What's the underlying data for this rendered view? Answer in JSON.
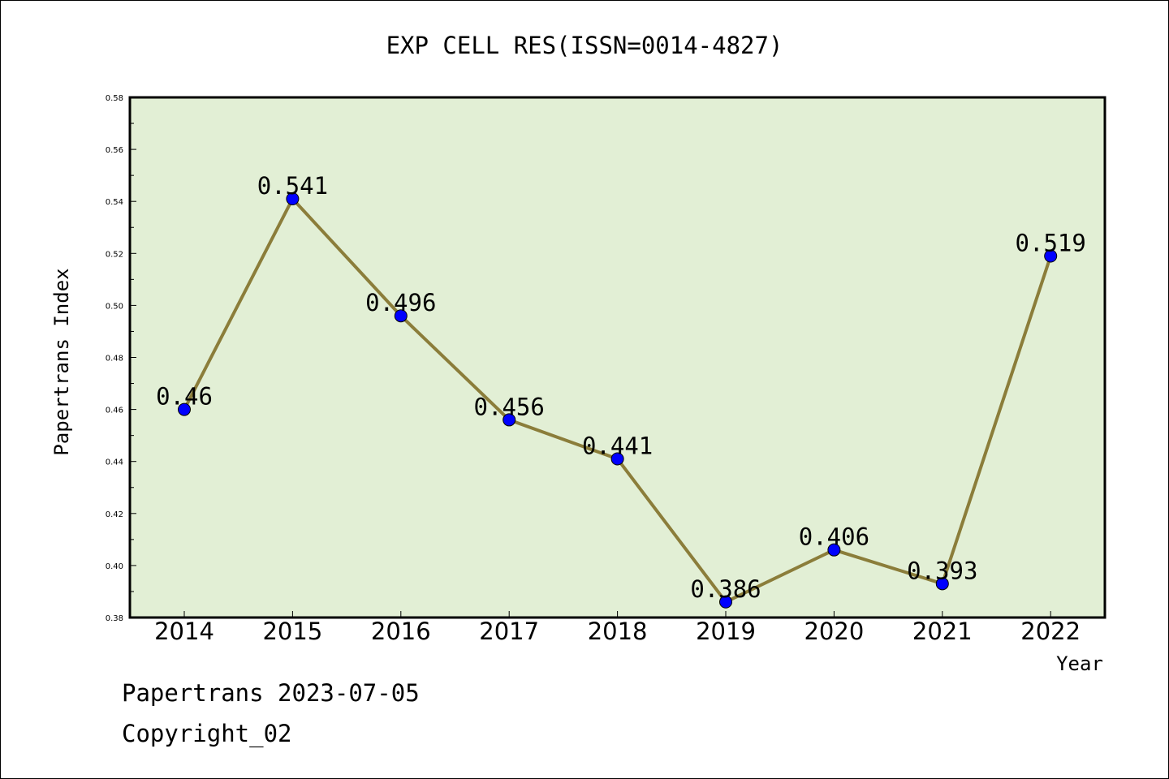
{
  "title": "EXP CELL RES(ISSN=0014-4827)",
  "footer": {
    "line1": "Papertrans 2023-07-05",
    "line2": "Copyright_02"
  },
  "chart_data": {
    "type": "line",
    "title": "EXP CELL RES(ISSN=0014-4827)",
    "xlabel": "Year",
    "ylabel": "Papertrans Index",
    "categories": [
      "2014",
      "2015",
      "2016",
      "2017",
      "2018",
      "2019",
      "2020",
      "2021",
      "2022"
    ],
    "values": [
      0.46,
      0.541,
      0.496,
      0.456,
      0.441,
      0.386,
      0.406,
      0.393,
      0.519
    ],
    "data_labels": [
      "0.46",
      "0.541",
      "0.496",
      "0.456",
      "0.441",
      "0.386",
      "0.406",
      "0.393",
      "0.519"
    ],
    "ylim": [
      0.38,
      0.58
    ],
    "yticks": [
      "0.38",
      "0.40",
      "0.42",
      "0.44",
      "0.46",
      "0.48",
      "0.50",
      "0.52",
      "0.54",
      "0.56",
      "0.58"
    ],
    "grid": false,
    "colors": {
      "plot_background": "#e2efd5",
      "line": "#8b7d3a",
      "marker": "#0000ff"
    }
  }
}
